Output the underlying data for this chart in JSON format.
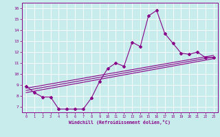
{
  "xlabel": "Windchill (Refroidissement éolien,°C)",
  "xlim": [
    -0.5,
    23.5
  ],
  "ylim": [
    6.5,
    16.5
  ],
  "yticks": [
    7,
    8,
    9,
    10,
    11,
    12,
    13,
    14,
    15,
    16
  ],
  "xticks": [
    0,
    1,
    2,
    3,
    4,
    5,
    6,
    7,
    8,
    9,
    10,
    11,
    12,
    13,
    14,
    15,
    16,
    17,
    18,
    19,
    20,
    21,
    22,
    23
  ],
  "bg_color": "#c8ecec",
  "line_color": "#880088",
  "grid_color": "#ffffff",
  "series1_x": [
    0,
    1,
    2,
    3,
    4,
    5,
    6,
    7,
    8,
    9,
    10,
    11,
    12,
    13,
    14,
    15,
    16,
    17,
    18,
    19,
    20,
    21,
    22,
    23
  ],
  "series1_y": [
    8.9,
    8.3,
    7.9,
    7.9,
    6.8,
    6.8,
    6.8,
    6.8,
    7.8,
    9.3,
    10.5,
    11.0,
    10.7,
    12.9,
    12.5,
    15.3,
    15.8,
    13.7,
    12.8,
    11.9,
    11.8,
    12.0,
    11.5,
    11.5
  ],
  "series2_x": [
    0,
    23
  ],
  "series2_y": [
    8.3,
    11.4
  ],
  "series3_x": [
    0,
    23
  ],
  "series3_y": [
    8.5,
    11.55
  ],
  "series4_x": [
    0,
    23
  ],
  "series4_y": [
    8.7,
    11.7
  ]
}
